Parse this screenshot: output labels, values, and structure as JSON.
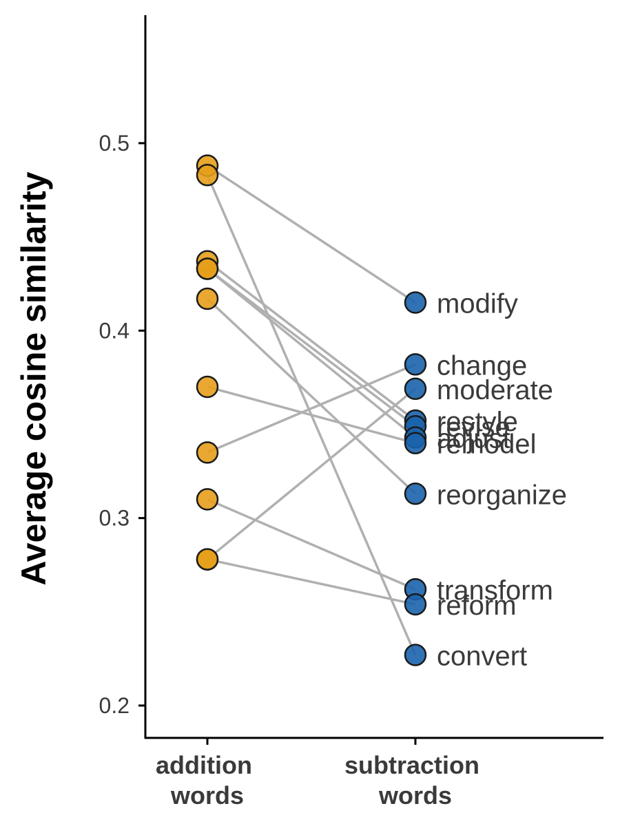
{
  "chart_data": {
    "type": "scatter",
    "ylabel": "Average cosine similarity",
    "xlabel": "",
    "categories": [
      [
        "addition",
        "words"
      ],
      [
        "subtraction",
        "words"
      ]
    ],
    "ylim": [
      0.18,
      0.565
    ],
    "yticks": [
      "0.2",
      "0.3",
      "0.4",
      "0.5"
    ],
    "grid": false,
    "legend": "none",
    "colors": {
      "addition": "#E69F1B",
      "subtraction": "#1A63AB",
      "line": "#B0B0B0",
      "outline": "#1a1a1a"
    },
    "pairs": [
      {
        "word": "modify",
        "addition": 0.488,
        "subtraction": 0.415
      },
      {
        "word": "convert",
        "addition": 0.483,
        "subtraction": 0.227
      },
      {
        "word": "restyle",
        "addition": 0.437,
        "subtraction": 0.352
      },
      {
        "word": "revise",
        "addition": 0.433,
        "subtraction": 0.349
      },
      {
        "word": "adjust",
        "addition": 0.433,
        "subtraction": 0.343
      },
      {
        "word": "reorganize",
        "addition": 0.417,
        "subtraction": 0.313
      },
      {
        "word": "remodel",
        "addition": 0.37,
        "subtraction": 0.34
      },
      {
        "word": "change",
        "addition": 0.335,
        "subtraction": 0.382
      },
      {
        "word": "transform",
        "addition": 0.31,
        "subtraction": 0.262
      },
      {
        "word": "reform",
        "addition": 0.278,
        "subtraction": 0.254
      },
      {
        "word": "moderate",
        "addition": 0.278,
        "subtraction": 0.369
      }
    ]
  }
}
